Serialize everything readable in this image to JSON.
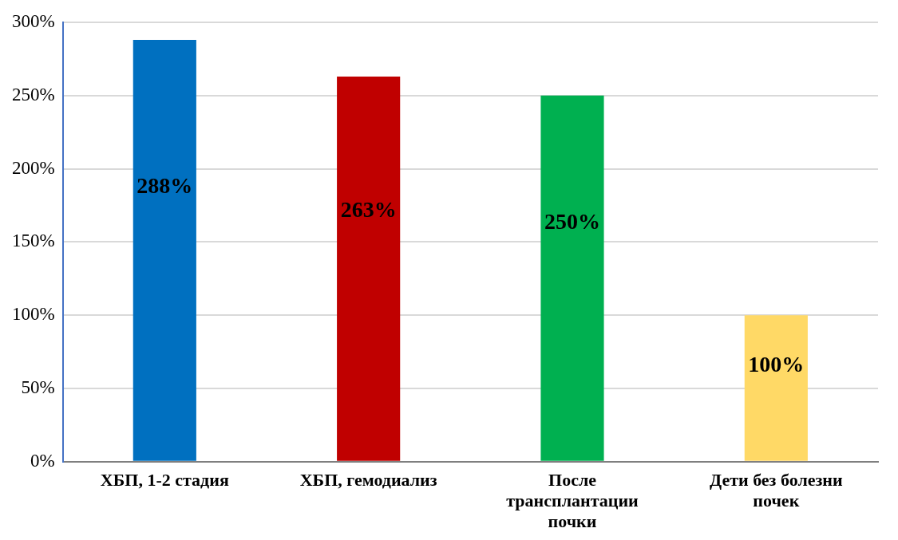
{
  "chart_data": {
    "type": "bar",
    "categories": [
      "ХБП, 1-2 стадия",
      "ХБП, гемодиализ",
      "После трансплантации почки",
      "Дети без болезни почек"
    ],
    "values": [
      288,
      263,
      250,
      100
    ],
    "colors": [
      "#0070c0",
      "#c00000",
      "#00b050",
      "#ffd966"
    ],
    "value_labels": [
      "288%",
      "263%",
      "250%",
      "100%"
    ],
    "ylim": [
      0,
      300
    ],
    "yticks": [
      {
        "value": 0,
        "label": "0%"
      },
      {
        "value": 50,
        "label": "50%"
      },
      {
        "value": 100,
        "label": "100%"
      },
      {
        "value": 150,
        "label": "150%"
      },
      {
        "value": 200,
        "label": "200%"
      },
      {
        "value": 250,
        "label": "250%"
      },
      {
        "value": 300,
        "label": "300%"
      }
    ],
    "grid": "y",
    "legend": false
  }
}
